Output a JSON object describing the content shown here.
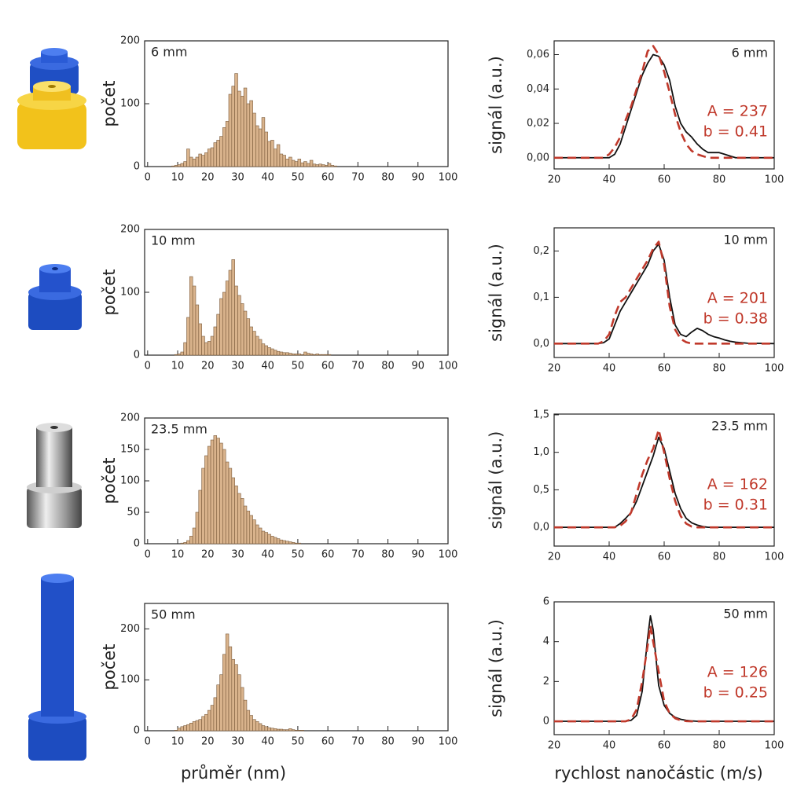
{
  "chart_data": [
    {
      "type": "histogram",
      "label": "6 mm",
      "ylabel": "počet",
      "color": "#d9b38c",
      "edgecolor": "#7a5a3a",
      "bins": [
        8,
        9,
        10,
        11,
        12,
        13,
        14,
        15,
        16,
        17,
        18,
        19,
        20,
        21,
        22,
        23,
        24,
        25,
        26,
        27,
        28,
        29,
        30,
        31,
        32,
        33,
        34,
        35,
        36,
        37,
        38,
        39,
        40,
        41,
        42,
        43,
        44,
        45,
        46,
        47,
        48,
        49,
        50,
        51,
        52,
        53,
        54,
        55,
        56,
        57,
        58,
        59,
        60,
        61,
        62,
        63
      ],
      "values": [
        1,
        2,
        3,
        5,
        8,
        28,
        15,
        12,
        15,
        20,
        18,
        22,
        28,
        30,
        38,
        42,
        48,
        62,
        72,
        115,
        128,
        148,
        120,
        112,
        125,
        100,
        105,
        85,
        65,
        60,
        78,
        55,
        40,
        42,
        28,
        35,
        20,
        18,
        12,
        15,
        10,
        8,
        12,
        6,
        8,
        5,
        10,
        4,
        3,
        4,
        3,
        2,
        5,
        2,
        1
      ],
      "xlim": [
        -1,
        100
      ],
      "xticks": [
        0,
        10,
        20,
        30,
        40,
        50,
        60,
        70,
        80,
        90,
        100
      ],
      "ylim": [
        0,
        200
      ],
      "yticks": [
        0,
        100,
        200
      ]
    },
    {
      "type": "histogram",
      "label": "10 mm",
      "ylabel": "počet",
      "color": "#d9b38c",
      "edgecolor": "#7a5a3a",
      "bins": [
        8,
        9,
        10,
        11,
        12,
        13,
        14,
        15,
        16,
        17,
        18,
        19,
        20,
        21,
        22,
        23,
        24,
        25,
        26,
        27,
        28,
        29,
        30,
        31,
        32,
        33,
        34,
        35,
        36,
        37,
        38,
        39,
        40,
        41,
        42,
        43,
        44,
        45,
        46,
        47,
        48,
        49,
        50,
        51,
        52,
        53,
        54,
        55,
        56,
        57,
        58,
        59,
        60,
        61,
        62,
        63
      ],
      "values": [
        0,
        1,
        2,
        5,
        20,
        60,
        125,
        110,
        80,
        50,
        30,
        20,
        22,
        30,
        45,
        65,
        90,
        100,
        118,
        135,
        152,
        110,
        95,
        82,
        70,
        58,
        45,
        38,
        30,
        25,
        18,
        15,
        12,
        10,
        8,
        6,
        5,
        4,
        4,
        3,
        2,
        2,
        2,
        1,
        5,
        3,
        2,
        1,
        2,
        1,
        1,
        1,
        1,
        0,
        0
      ],
      "xlim": [
        -1,
        100
      ],
      "xticks": [
        0,
        10,
        20,
        30,
        40,
        50,
        60,
        70,
        80,
        90,
        100
      ],
      "ylim": [
        0,
        200
      ],
      "yticks": [
        0,
        100,
        200
      ]
    },
    {
      "type": "histogram",
      "label": "23.5 mm",
      "ylabel": "počet",
      "color": "#d9b38c",
      "edgecolor": "#7a5a3a",
      "bins": [
        8,
        9,
        10,
        11,
        12,
        13,
        14,
        15,
        16,
        17,
        18,
        19,
        20,
        21,
        22,
        23,
        24,
        25,
        26,
        27,
        28,
        29,
        30,
        31,
        32,
        33,
        34,
        35,
        36,
        37,
        38,
        39,
        40,
        41,
        42,
        43,
        44,
        45,
        46,
        47,
        48,
        49,
        50,
        51,
        52,
        53,
        54,
        55,
        56,
        57,
        58,
        59,
        60,
        61,
        62,
        63
      ],
      "values": [
        0,
        0,
        0,
        1,
        2,
        5,
        12,
        25,
        50,
        85,
        120,
        140,
        155,
        165,
        172,
        168,
        160,
        150,
        130,
        120,
        105,
        92,
        80,
        72,
        60,
        52,
        45,
        38,
        30,
        25,
        20,
        18,
        15,
        12,
        10,
        8,
        6,
        5,
        4,
        3,
        2,
        1,
        1,
        0,
        0,
        0,
        0,
        0,
        0,
        0,
        0,
        0,
        0,
        0,
        0
      ],
      "xlim": [
        -1,
        100
      ],
      "xticks": [
        0,
        10,
        20,
        30,
        40,
        50,
        60,
        70,
        80,
        90,
        100
      ],
      "ylim": [
        0,
        200
      ],
      "yticks": [
        0,
        50,
        100,
        150,
        200
      ]
    },
    {
      "type": "histogram",
      "label": "50 mm",
      "ylabel": "počet",
      "xlabel": "průměr (nm)",
      "color": "#d9b38c",
      "edgecolor": "#7a5a3a",
      "bins": [
        8,
        9,
        10,
        11,
        12,
        13,
        14,
        15,
        16,
        17,
        18,
        19,
        20,
        21,
        22,
        23,
        24,
        25,
        26,
        27,
        28,
        29,
        30,
        31,
        32,
        33,
        34,
        35,
        36,
        37,
        38,
        39,
        40,
        41,
        42,
        43,
        44,
        45,
        46,
        47,
        48,
        49,
        50,
        51,
        52,
        53,
        54,
        55,
        56,
        57,
        58,
        59,
        60,
        61,
        62,
        63
      ],
      "values": [
        0,
        1,
        5,
        8,
        10,
        12,
        15,
        18,
        20,
        22,
        28,
        32,
        40,
        50,
        65,
        90,
        110,
        150,
        190,
        165,
        140,
        130,
        110,
        85,
        60,
        40,
        30,
        22,
        18,
        14,
        10,
        8,
        6,
        5,
        4,
        3,
        3,
        2,
        2,
        4,
        2,
        1,
        1,
        1,
        0,
        0,
        0,
        0,
        0,
        0,
        0,
        0,
        0,
        0,
        0
      ],
      "xlim": [
        -1,
        100
      ],
      "xticks": [
        0,
        10,
        20,
        30,
        40,
        50,
        60,
        70,
        80,
        90,
        100
      ],
      "ylim": [
        0,
        250
      ],
      "yticks": [
        0,
        100,
        200
      ]
    },
    {
      "type": "line",
      "label": "6 mm",
      "ylabel": "signál (a.u.)",
      "fit_params": [
        "A = 237",
        "b = 0.41"
      ],
      "x": [
        20,
        30,
        36,
        38,
        40,
        42,
        44,
        46,
        48,
        50,
        52,
        54,
        56,
        58,
        60,
        62,
        64,
        66,
        68,
        70,
        72,
        74,
        76,
        78,
        80,
        82,
        84,
        86,
        88,
        90,
        100
      ],
      "series": [
        {
          "color": "#111111",
          "dashed": false,
          "values": [
            0,
            0,
            0,
            0,
            0,
            0.002,
            0.008,
            0.018,
            0.028,
            0.038,
            0.048,
            0.055,
            0.06,
            0.059,
            0.054,
            0.045,
            0.03,
            0.02,
            0.015,
            0.012,
            0.008,
            0.005,
            0.003,
            0.003,
            0.003,
            0.002,
            0.001,
            0,
            0,
            0,
            0
          ]
        },
        {
          "color": "#c0392b",
          "dashed": true,
          "values": [
            0,
            0,
            0,
            0,
            0.002,
            0.006,
            0.012,
            0.022,
            0.03,
            0.04,
            0.05,
            0.062,
            0.065,
            0.06,
            0.05,
            0.038,
            0.025,
            0.015,
            0.008,
            0.004,
            0.002,
            0.001,
            0,
            0,
            0,
            0,
            0,
            0,
            0,
            0,
            0
          ]
        }
      ],
      "xlim": [
        20,
        100
      ],
      "xticks": [
        20,
        40,
        60,
        80,
        100
      ],
      "ylim": [
        -0.0065,
        0.068
      ],
      "yticks": [
        {
          "value": 0,
          "label": "0,00"
        },
        {
          "value": 0.02,
          "label": "0,02"
        },
        {
          "value": 0.04,
          "label": "0,04"
        },
        {
          "value": 0.06,
          "label": "0,06"
        }
      ]
    },
    {
      "type": "line",
      "label": "10 mm",
      "ylabel": "signál (a.u.)",
      "fit_params": [
        "A = 201",
        "b = 0.38"
      ],
      "x": [
        20,
        30,
        36,
        38,
        40,
        42,
        44,
        46,
        48,
        50,
        52,
        54,
        56,
        58,
        60,
        62,
        64,
        66,
        68,
        70,
        72,
        74,
        76,
        78,
        80,
        82,
        84,
        86,
        88,
        90,
        100
      ],
      "series": [
        {
          "color": "#111111",
          "dashed": false,
          "values": [
            0,
            0,
            0,
            0.002,
            0.01,
            0.04,
            0.07,
            0.09,
            0.11,
            0.13,
            0.15,
            0.17,
            0.2,
            0.215,
            0.18,
            0.1,
            0.04,
            0.02,
            0.015,
            0.025,
            0.033,
            0.028,
            0.02,
            0.015,
            0.012,
            0.008,
            0.005,
            0.003,
            0.002,
            0.001,
            0
          ]
        },
        {
          "color": "#c0392b",
          "dashed": true,
          "values": [
            0,
            0,
            0,
            0.005,
            0.02,
            0.06,
            0.09,
            0.1,
            0.12,
            0.14,
            0.16,
            0.18,
            0.205,
            0.22,
            0.17,
            0.08,
            0.03,
            0.01,
            0.003,
            0,
            0,
            0,
            0,
            0,
            0,
            0,
            0,
            0,
            0,
            0,
            0
          ]
        }
      ],
      "xlim": [
        20,
        100
      ],
      "xticks": [
        20,
        40,
        60,
        80,
        100
      ],
      "ylim": [
        -0.03,
        0.25
      ],
      "yticks": [
        {
          "value": 0,
          "label": "0,0"
        },
        {
          "value": 0.1,
          "label": "0,1"
        },
        {
          "value": 0.2,
          "label": "0,2"
        }
      ]
    },
    {
      "type": "line",
      "label": "23.5 mm",
      "ylabel": "signál (a.u.)",
      "fit_params": [
        "A = 162",
        "b = 0.31"
      ],
      "x": [
        20,
        30,
        36,
        38,
        40,
        42,
        44,
        46,
        48,
        50,
        52,
        54,
        56,
        58,
        60,
        62,
        64,
        66,
        68,
        70,
        72,
        74,
        76,
        78,
        80,
        82,
        84,
        86,
        88,
        90,
        100
      ],
      "series": [
        {
          "color": "#111111",
          "dashed": false,
          "values": [
            0,
            0,
            0,
            0,
            0,
            0,
            0.05,
            0.12,
            0.2,
            0.35,
            0.55,
            0.75,
            0.95,
            1.2,
            1.05,
            0.75,
            0.45,
            0.25,
            0.12,
            0.06,
            0.03,
            0.01,
            0,
            0,
            0,
            0,
            0,
            0,
            0,
            0,
            0
          ]
        },
        {
          "color": "#c0392b",
          "dashed": true,
          "values": [
            0,
            0,
            0,
            0,
            0,
            0,
            0.02,
            0.08,
            0.2,
            0.45,
            0.7,
            0.9,
            1.05,
            1.3,
            1.0,
            0.65,
            0.35,
            0.15,
            0.05,
            0.01,
            0,
            0,
            0,
            0,
            0,
            0,
            0,
            0,
            0,
            0,
            0
          ]
        }
      ],
      "xlim": [
        20,
        100
      ],
      "xticks": [
        20,
        40,
        60,
        80,
        100
      ],
      "ylim": [
        -0.25,
        1.51
      ],
      "yticks": [
        {
          "value": 0,
          "label": "0,0"
        },
        {
          "value": 0.5,
          "label": "0,5"
        },
        {
          "value": 1,
          "label": "1,0"
        },
        {
          "value": 1.5,
          "label": "1,5"
        }
      ]
    },
    {
      "type": "line",
      "label": "50 mm",
      "ylabel": "signál (a.u.)",
      "xlabel": "rychlost nanočástic (m/s)",
      "fit_params": [
        "A = 126",
        "b = 0.25"
      ],
      "x": [
        20,
        30,
        36,
        38,
        40,
        42,
        44,
        46,
        48,
        50,
        52,
        54,
        55,
        56,
        58,
        60,
        62,
        64,
        66,
        68,
        70,
        72,
        74,
        76,
        78,
        80,
        82,
        84,
        86,
        88,
        90,
        100
      ],
      "series": [
        {
          "color": "#111111",
          "dashed": false,
          "values": [
            0,
            0,
            0,
            0,
            0,
            0,
            0,
            0,
            0.05,
            0.3,
            1.5,
            4.2,
            5.3,
            4.6,
            1.8,
            0.8,
            0.4,
            0.2,
            0.1,
            0.05,
            0.02,
            0,
            0,
            0,
            0,
            0,
            0,
            0,
            0,
            0,
            0,
            0
          ]
        },
        {
          "color": "#c0392b",
          "dashed": true,
          "values": [
            0,
            0,
            0,
            0,
            0,
            0,
            0,
            0,
            0.1,
            0.6,
            2.0,
            3.8,
            4.8,
            4.0,
            2.5,
            1.0,
            0.4,
            0.15,
            0.05,
            0.01,
            0,
            0,
            0,
            0,
            0,
            0,
            0,
            0,
            0,
            0,
            0,
            0
          ]
        }
      ],
      "xlim": [
        20,
        100
      ],
      "xticks": [
        20,
        40,
        60,
        80,
        100
      ],
      "ylim": [
        -0.67,
        6
      ],
      "yticks": [
        0,
        2,
        4,
        6
      ]
    }
  ]
}
